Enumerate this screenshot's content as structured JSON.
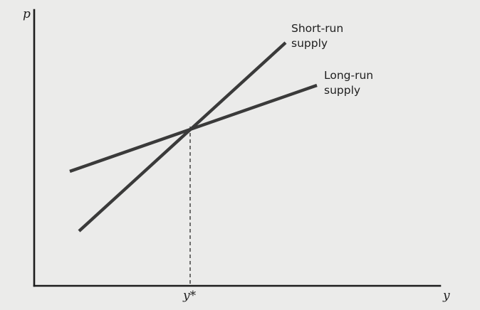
{
  "axes": {
    "y_axis_label": "p",
    "x_axis_label": "y",
    "equilibrium_tick_label": "y*"
  },
  "curves": {
    "short_run": {
      "label_line1": "Short-run",
      "label_line2": "supply"
    },
    "long_run": {
      "label_line1": "Long-run",
      "label_line2": "supply"
    }
  },
  "colors": {
    "background": "#ebebea",
    "lines": "#3a3a3a"
  }
}
